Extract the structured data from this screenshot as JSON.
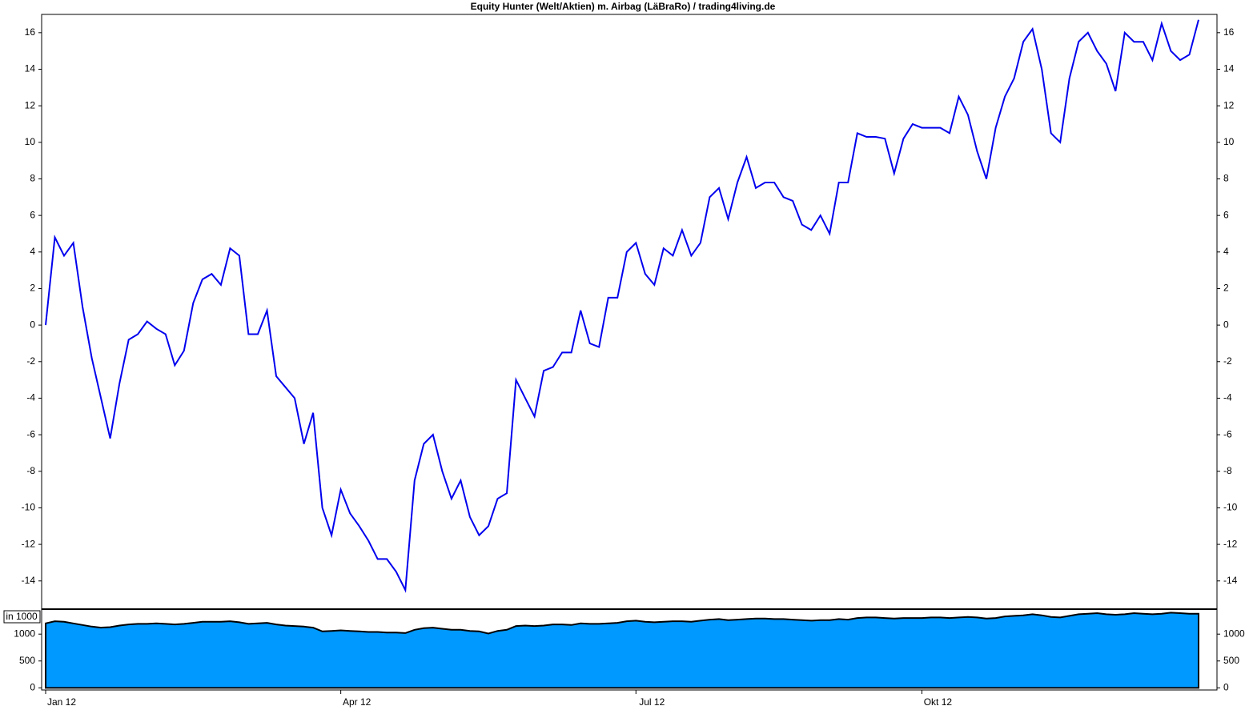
{
  "chart_data": [
    {
      "type": "line",
      "title": "Equity Hunter (Welt/Aktien) m. Airbag (LäBraRo) / trading4living.de",
      "series": [
        {
          "color": "#0000ee",
          "values": [
            0,
            4.8,
            3.8,
            4.5,
            1.0,
            -1.8,
            -4.0,
            -6.2,
            -3.2,
            -0.8,
            -0.5,
            0.2,
            -0.2,
            -0.5,
            -2.2,
            -1.4,
            1.2,
            2.5,
            2.8,
            2.2,
            4.2,
            3.8,
            -0.5,
            -0.5,
            0.8,
            -2.8,
            -3.4,
            -4.0,
            -6.5,
            -4.8,
            -10.0,
            -11.5,
            -9.0,
            -10.3,
            -11.0,
            -11.8,
            -12.8,
            -12.8,
            -13.5,
            -14.5,
            -8.5,
            -6.5,
            -6.0,
            -8.0,
            -9.5,
            -8.5,
            -10.5,
            -11.5,
            -11.0,
            -9.5,
            -9.2,
            -3.0,
            -4.0,
            -5.0,
            -2.5,
            -2.3,
            -1.5,
            -1.5,
            0.8,
            -1.0,
            -1.2,
            1.5,
            1.5,
            4.0,
            4.5,
            2.8,
            2.2,
            4.2,
            3.8,
            5.2,
            3.8,
            4.5,
            7.0,
            7.5,
            5.8,
            7.8,
            9.2,
            7.5,
            7.8,
            7.8,
            7.0,
            6.8,
            5.5,
            5.2,
            6.0,
            5.0,
            7.8,
            7.8,
            10.5,
            10.3,
            10.3,
            10.2,
            8.3,
            10.2,
            11.0,
            10.8,
            10.8,
            10.8,
            10.5,
            12.5,
            11.5,
            9.5,
            8.0,
            10.8,
            12.5,
            13.5,
            15.5,
            16.2,
            14.0,
            10.5,
            10.0,
            13.5,
            15.5,
            16.0,
            15.0,
            14.3,
            12.8,
            16.0,
            15.5,
            15.5,
            14.5,
            16.5,
            15.0,
            14.5,
            14.8,
            16.7
          ]
        }
      ],
      "ylim": [
        -15.5,
        17
      ],
      "yticks": [
        -14,
        -12,
        -10,
        -8,
        -6,
        -4,
        -2,
        0,
        2,
        4,
        6,
        8,
        10,
        12,
        14,
        16
      ]
    },
    {
      "type": "area",
      "ylabel": "in 1000",
      "categories": [
        "Jan 12",
        null,
        null,
        null,
        null,
        null,
        null,
        null,
        null,
        null,
        null,
        null,
        null,
        null,
        null,
        null,
        null,
        null,
        null,
        null,
        null,
        null,
        null,
        null,
        null,
        null,
        null,
        null,
        null,
        null,
        null,
        null,
        "Apr 12",
        null,
        null,
        null,
        null,
        null,
        null,
        null,
        null,
        null,
        null,
        null,
        null,
        null,
        null,
        null,
        null,
        null,
        null,
        null,
        null,
        null,
        null,
        null,
        null,
        null,
        null,
        null,
        null,
        null,
        null,
        null,
        "Jul 12",
        null,
        null,
        null,
        null,
        null,
        null,
        null,
        null,
        null,
        null,
        null,
        null,
        null,
        null,
        null,
        null,
        null,
        null,
        null,
        null,
        null,
        null,
        null,
        null,
        null,
        null,
        null,
        null,
        null,
        null,
        "Okt 12",
        null,
        null,
        null,
        null,
        null,
        null,
        null,
        null,
        null,
        null,
        null,
        null,
        null,
        null,
        null,
        null,
        null,
        null,
        null,
        null,
        null,
        null,
        null,
        null,
        null,
        null,
        null,
        null,
        null,
        null
      ],
      "series": [
        {
          "color": "#0099ff",
          "values": [
            1200,
            1240,
            1230,
            1200,
            1170,
            1140,
            1120,
            1130,
            1160,
            1180,
            1190,
            1190,
            1200,
            1190,
            1180,
            1190,
            1210,
            1230,
            1230,
            1230,
            1240,
            1220,
            1190,
            1200,
            1210,
            1180,
            1160,
            1150,
            1140,
            1120,
            1050,
            1060,
            1070,
            1060,
            1050,
            1040,
            1040,
            1030,
            1030,
            1020,
            1080,
            1110,
            1120,
            1100,
            1080,
            1080,
            1060,
            1050,
            1010,
            1060,
            1080,
            1150,
            1160,
            1150,
            1160,
            1180,
            1180,
            1170,
            1200,
            1190,
            1190,
            1200,
            1210,
            1240,
            1250,
            1230,
            1220,
            1230,
            1240,
            1240,
            1230,
            1250,
            1270,
            1280,
            1260,
            1270,
            1280,
            1290,
            1290,
            1280,
            1280,
            1270,
            1260,
            1250,
            1260,
            1260,
            1280,
            1270,
            1300,
            1310,
            1310,
            1300,
            1290,
            1300,
            1300,
            1300,
            1310,
            1310,
            1300,
            1310,
            1320,
            1310,
            1290,
            1300,
            1330,
            1340,
            1350,
            1370,
            1350,
            1320,
            1310,
            1340,
            1370,
            1380,
            1390,
            1370,
            1360,
            1370,
            1390,
            1380,
            1370,
            1380,
            1400,
            1390,
            1380,
            1380
          ]
        }
      ],
      "ylim": [
        -40,
        1450
      ],
      "yticks": [
        0,
        500,
        1000
      ]
    }
  ]
}
